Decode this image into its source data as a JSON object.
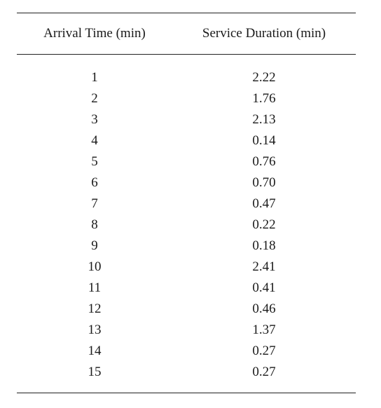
{
  "table": {
    "headers": [
      "Arrival Time (min)",
      "Service Duration (min)"
    ],
    "rows": [
      [
        "1",
        "2.22"
      ],
      [
        "2",
        "1.76"
      ],
      [
        "3",
        "2.13"
      ],
      [
        "4",
        "0.14"
      ],
      [
        "5",
        "0.76"
      ],
      [
        "6",
        "0.70"
      ],
      [
        "7",
        "0.47"
      ],
      [
        "8",
        "0.22"
      ],
      [
        "9",
        "0.18"
      ],
      [
        "10",
        "2.41"
      ],
      [
        "11",
        "0.41"
      ],
      [
        "12",
        "0.46"
      ],
      [
        "13",
        "1.37"
      ],
      [
        "14",
        "0.27"
      ],
      [
        "15",
        "0.27"
      ]
    ]
  }
}
